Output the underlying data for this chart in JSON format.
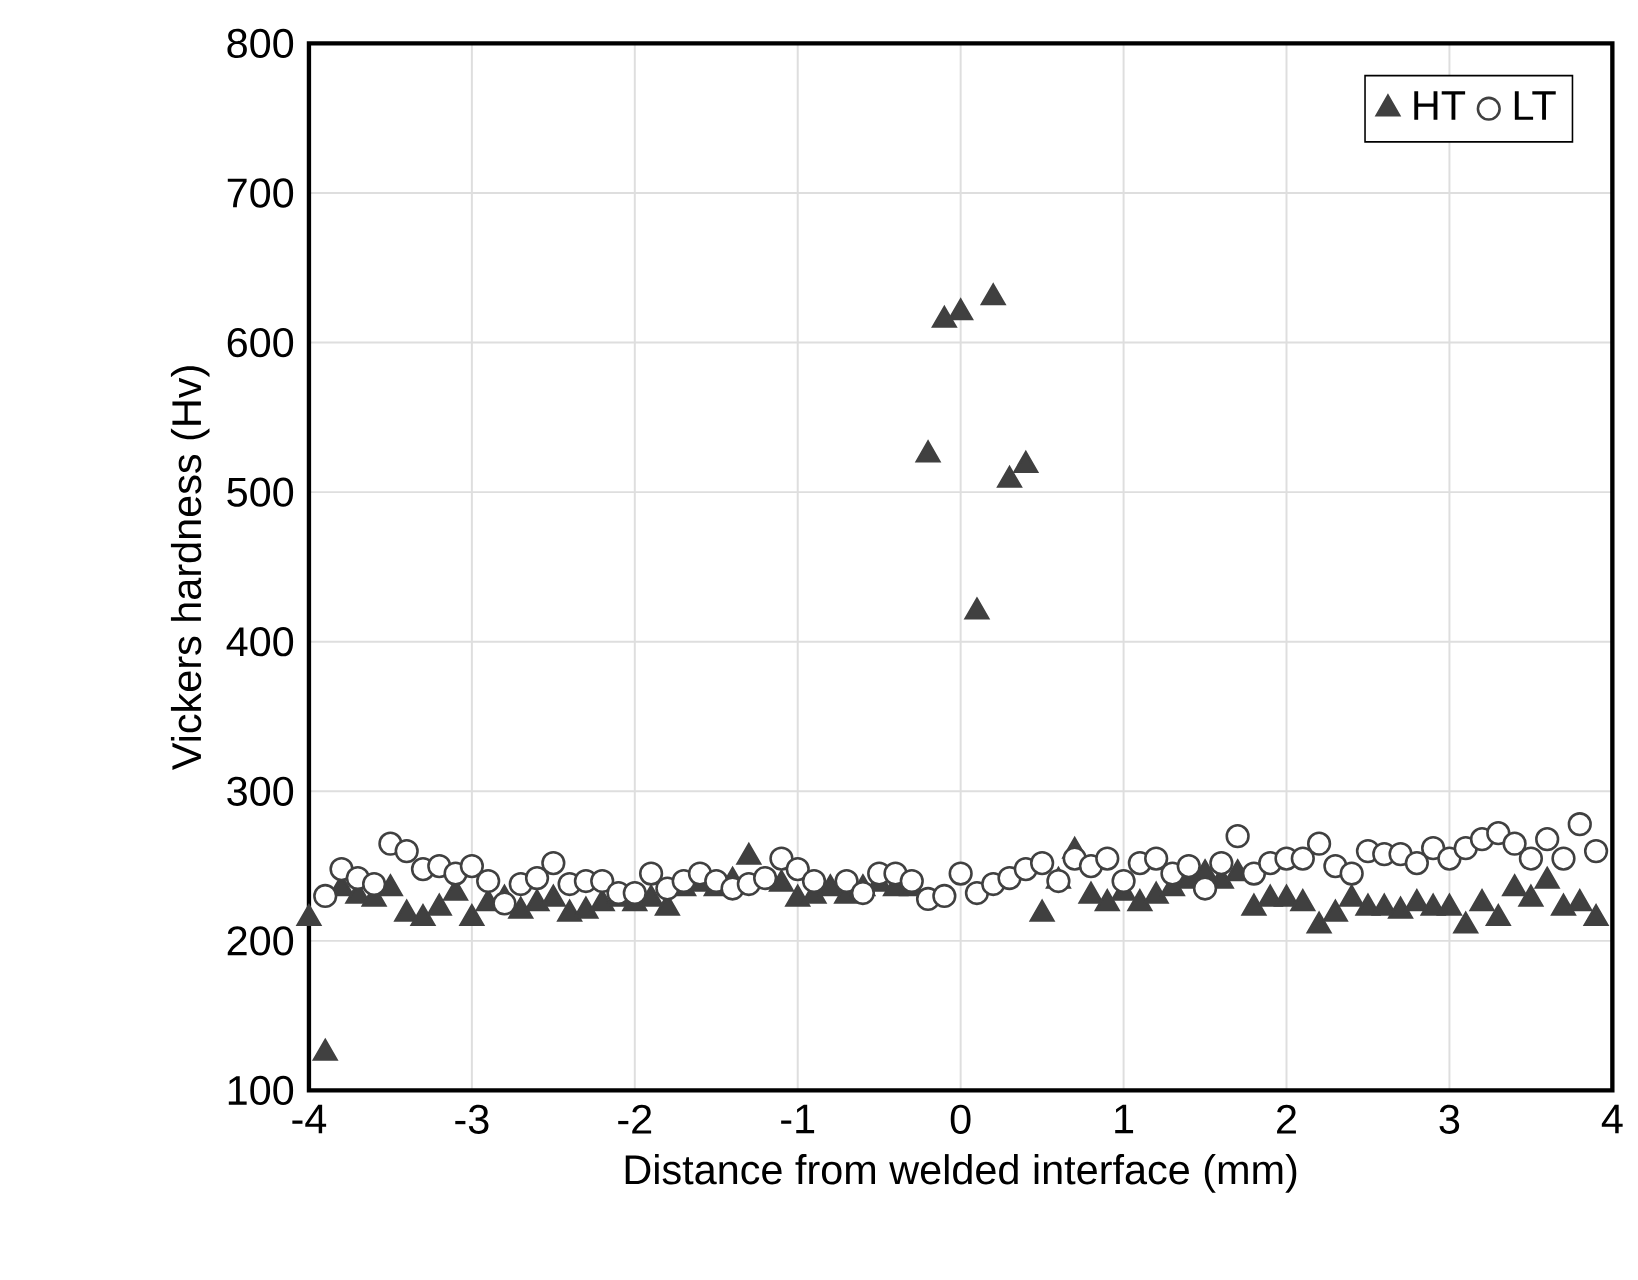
{
  "chart_data": {
    "type": "scatter",
    "xlabel": "Distance from welded interface (mm)",
    "ylabel": "Vickers hardness (Hv)",
    "xlim": [
      -4,
      4
    ],
    "ylim": [
      100,
      800
    ],
    "xticks": [
      -4,
      -3,
      -2,
      -1,
      0,
      1,
      2,
      3,
      4
    ],
    "yticks": [
      100,
      200,
      300,
      400,
      500,
      600,
      700,
      800
    ],
    "grid": true,
    "legend": "top right",
    "series": [
      {
        "name": "HT",
        "color": "#404040",
        "marker": "triangle",
        "x": [
          -4,
          -3.9,
          -3.8,
          -3.7,
          -3.6,
          -3.5,
          -3.4,
          -3.3,
          -3.2,
          -3.1,
          -3,
          -2.9,
          -2.8,
          -2.7,
          -2.6,
          -2.5,
          -2.4,
          -2.3,
          -2.2,
          -2.1,
          -2,
          -1.9,
          -1.8,
          -1.7,
          -1.6,
          -1.5,
          -1.4,
          -1.3,
          -1.2,
          -1.1,
          -1,
          -0.9,
          -0.8,
          -0.7,
          -0.6,
          -0.5,
          -0.4,
          -0.3,
          -0.2,
          -0.1,
          0,
          0.1,
          0.2,
          0.3,
          0.4,
          0.5,
          0.6,
          0.7,
          0.8,
          0.9,
          1,
          1.1,
          1.2,
          1.3,
          1.4,
          1.5,
          1.6,
          1.7,
          1.8,
          1.9,
          2,
          2.1,
          2.2,
          2.3,
          2.4,
          2.5,
          2.6,
          2.7,
          2.8,
          2.9,
          3,
          3.1,
          3.2,
          3.3,
          3.4,
          3.5,
          3.6,
          3.7,
          3.8,
          3.9
        ],
        "values": [
          215,
          125,
          235,
          230,
          228,
          235,
          218,
          215,
          222,
          232,
          215,
          225,
          228,
          220,
          225,
          228,
          218,
          220,
          225,
          228,
          225,
          228,
          222,
          235,
          238,
          235,
          240,
          256,
          null,
          238,
          228,
          230,
          235,
          230,
          235,
          238,
          235,
          235,
          525,
          615,
          620,
          420,
          630,
          508,
          518,
          218,
          240,
          260,
          230,
          225,
          232,
          225,
          230,
          235,
          240,
          245,
          240,
          245,
          222,
          228,
          228,
          225,
          210,
          218,
          228,
          222,
          222,
          220,
          225,
          222,
          222,
          210,
          225,
          215,
          235,
          228,
          240,
          222,
          225,
          215
        ]
      },
      {
        "name": "LT",
        "color": "#404040",
        "marker": "circle",
        "x": [
          -3.9,
          -3.8,
          -3.7,
          -3.6,
          -3.5,
          -3.4,
          -3.3,
          -3.2,
          -3.1,
          -3,
          -2.9,
          -2.8,
          -2.7,
          -2.6,
          -2.5,
          -2.4,
          -2.3,
          -2.2,
          -2.1,
          -2,
          -1.9,
          -1.8,
          -1.7,
          -1.6,
          -1.5,
          -1.4,
          -1.3,
          -1.2,
          -1.1,
          -1,
          -0.9,
          -0.8,
          -0.7,
          -0.6,
          -0.5,
          -0.4,
          -0.3,
          -0.2,
          -0.1,
          0,
          0.1,
          0.2,
          0.3,
          0.4,
          0.5,
          0.6,
          0.7,
          0.8,
          0.9,
          1,
          1.1,
          1.2,
          1.3,
          1.4,
          1.5,
          1.6,
          1.7,
          1.8,
          1.9,
          2,
          2.1,
          2.2,
          2.3,
          2.4,
          2.5,
          2.6,
          2.7,
          2.8,
          2.9,
          3,
          3.1,
          3.2,
          3.3,
          3.4,
          3.5,
          3.6,
          3.7,
          3.8,
          3.9
        ],
        "values": [
          230,
          248,
          242,
          238,
          265,
          260,
          248,
          250,
          245,
          250,
          240,
          225,
          238,
          242,
          252,
          238,
          240,
          240,
          232,
          232,
          245,
          235,
          240,
          245,
          240,
          235,
          238,
          242,
          255,
          248,
          240,
          null,
          240,
          232,
          245,
          245,
          240,
          228,
          230,
          245,
          232,
          238,
          242,
          248,
          252,
          240,
          255,
          250,
          255,
          240,
          252,
          255,
          245,
          250,
          235,
          252,
          270,
          245,
          252,
          255,
          255,
          265,
          250,
          245,
          260,
          258,
          258,
          252,
          262,
          255,
          262,
          268,
          272,
          265,
          255,
          268,
          255,
          278,
          260
        ]
      }
    ]
  }
}
